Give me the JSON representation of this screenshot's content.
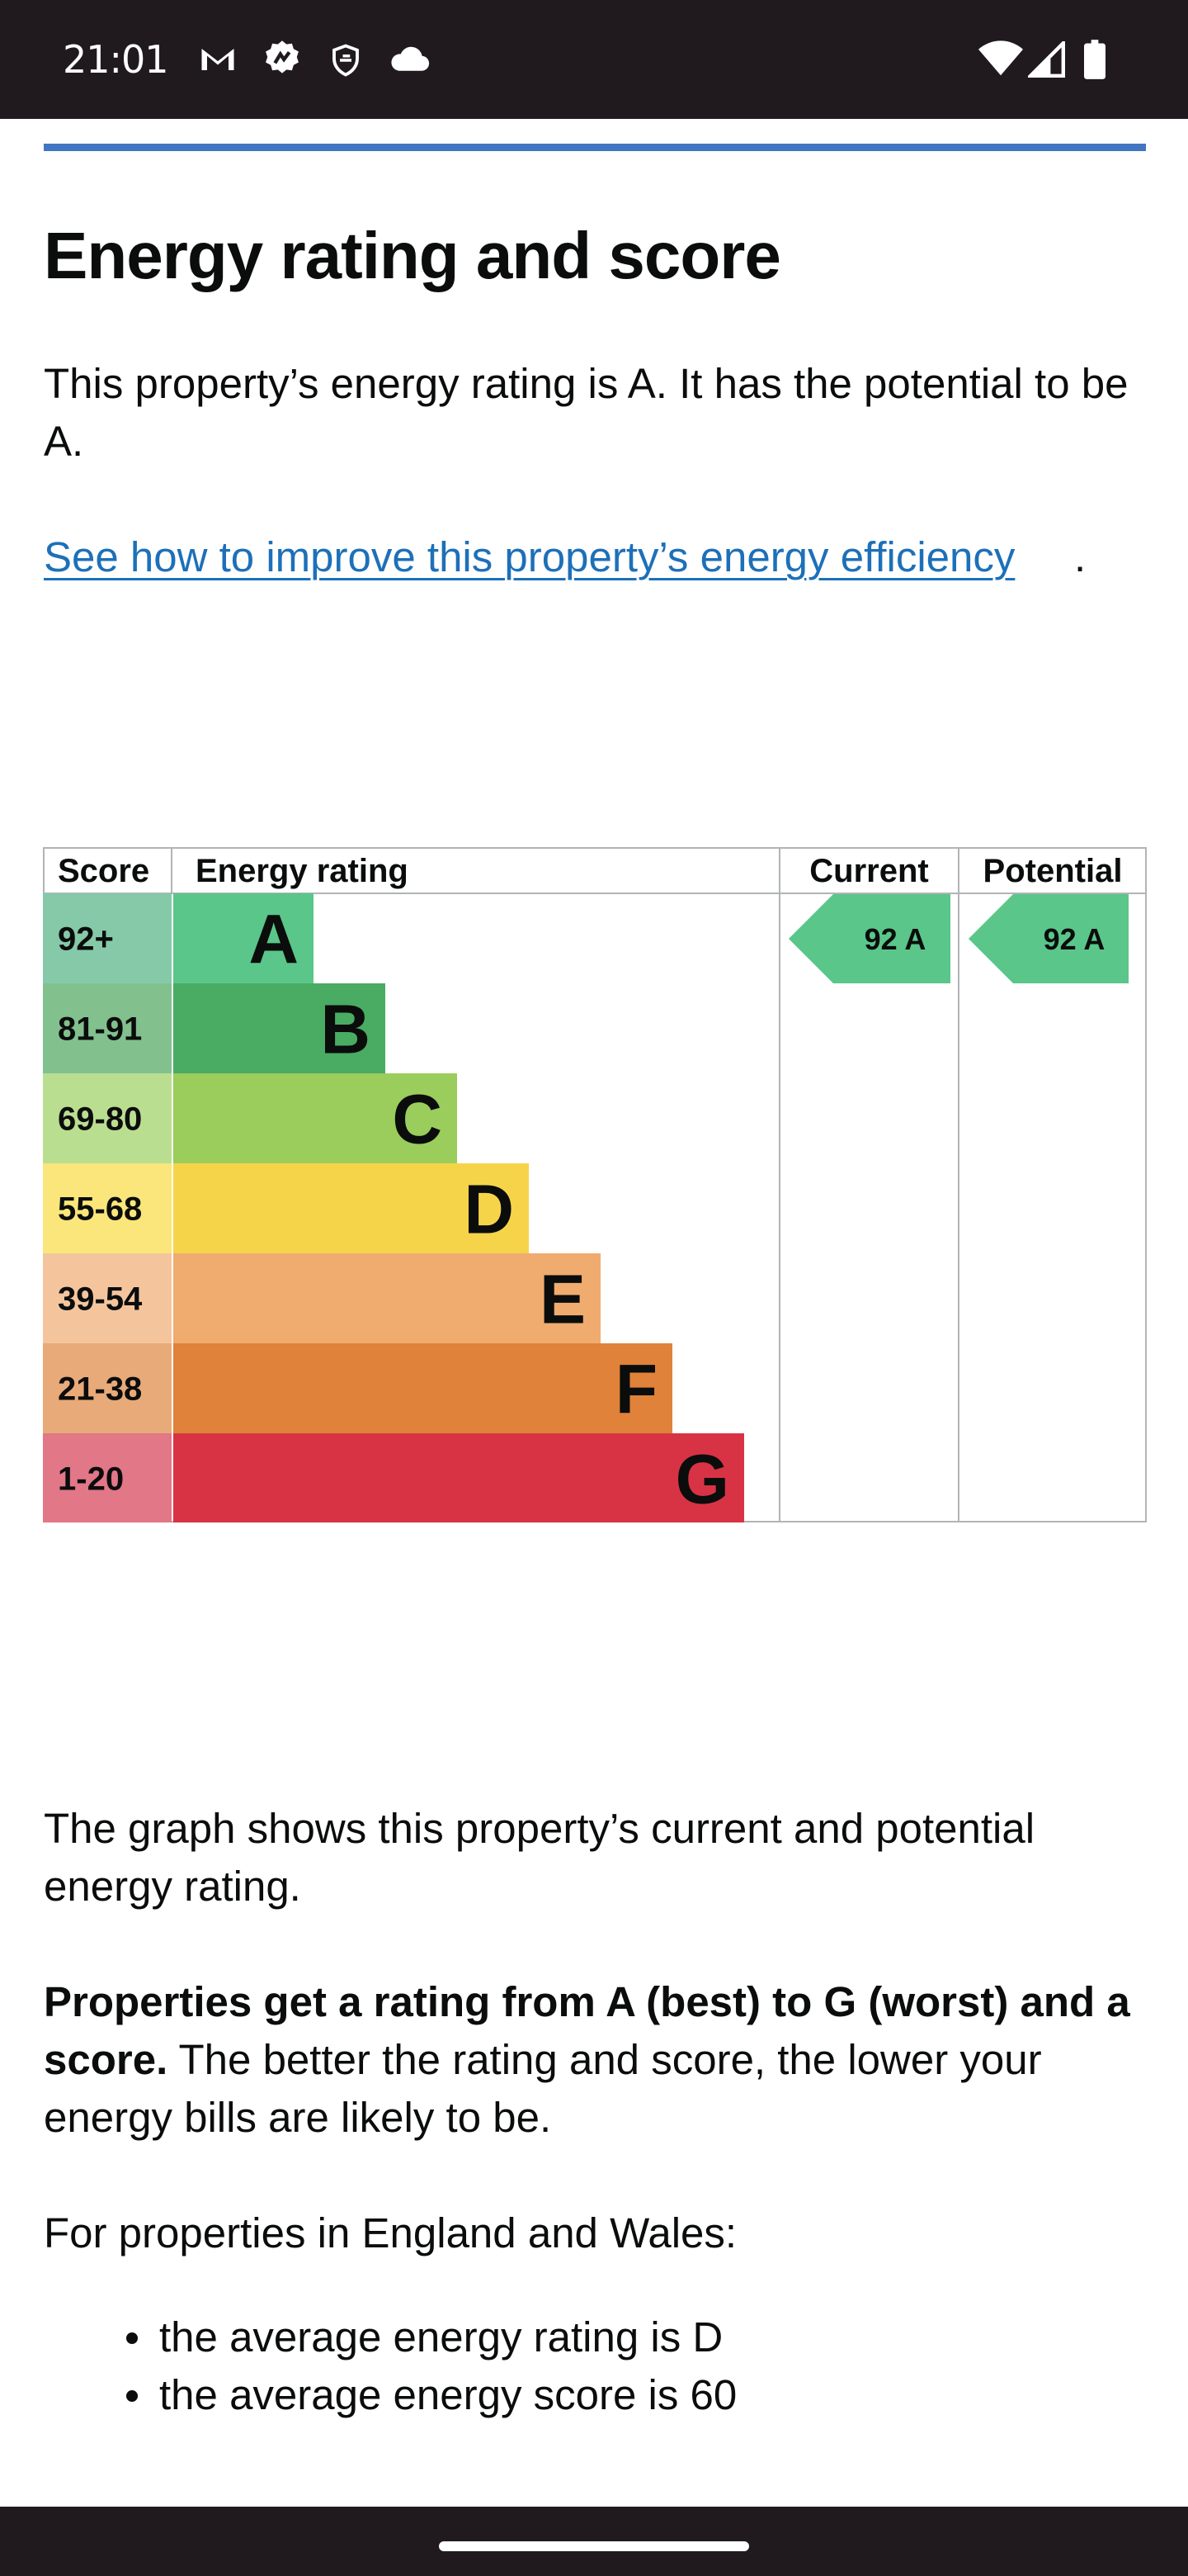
{
  "status_bar": {
    "time": "21:01",
    "left_icons": [
      "gmail-icon",
      "settings-badge-icon",
      "shield-icon",
      "cloud-icon"
    ],
    "right_icons": [
      "wifi-icon",
      "signal-icon",
      "battery-icon"
    ]
  },
  "section": {
    "title": "Energy rating and score",
    "rating_text": "This property’s energy rating is A. It has the potential to be A.",
    "improve_link": "See how to improve this property’s energy efficiency",
    "improve_link_suffix": "."
  },
  "chart_data": {
    "type": "table",
    "headers": {
      "score": "Score",
      "rating": "Energy rating",
      "current": "Current",
      "potential": "Potential"
    },
    "bands": [
      {
        "score": "92+",
        "letter": "A",
        "color": "#5ac68a",
        "score_bg": "#85c9a9"
      },
      {
        "score": "81-91",
        "letter": "B",
        "color": "#4aab63",
        "score_bg": "#82c08e"
      },
      {
        "score": "69-80",
        "letter": "C",
        "color": "#9acd5b",
        "score_bg": "#bade90"
      },
      {
        "score": "55-68",
        "letter": "D",
        "color": "#f6d44a",
        "score_bg": "#fae67a"
      },
      {
        "score": "39-54",
        "letter": "E",
        "color": "#f0ab6f",
        "score_bg": "#f4c59d"
      },
      {
        "score": "21-38",
        "letter": "F",
        "color": "#e08239",
        "score_bg": "#e8aa79"
      },
      {
        "score": "1-20",
        "letter": "G",
        "color": "#d83345",
        "score_bg": "#e17787"
      }
    ],
    "current": {
      "score": 92,
      "letter": "A",
      "label": "92  A",
      "color": "#5ac68a"
    },
    "potential": {
      "score": 92,
      "letter": "A",
      "label": "92  A",
      "color": "#5ac68a"
    }
  },
  "explanation": {
    "graph_text": "The graph shows this property’s current and potential energy rating.",
    "bands_bold": "Properties get a rating from A (best) to G (worst) and a score.",
    "bands_rest": " The better the rating and score, the lower your energy bills are likely to be.",
    "region_intro": "For properties in England and Wales:",
    "bullets": [
      "the average energy rating is D",
      "the average energy score is 60"
    ]
  }
}
